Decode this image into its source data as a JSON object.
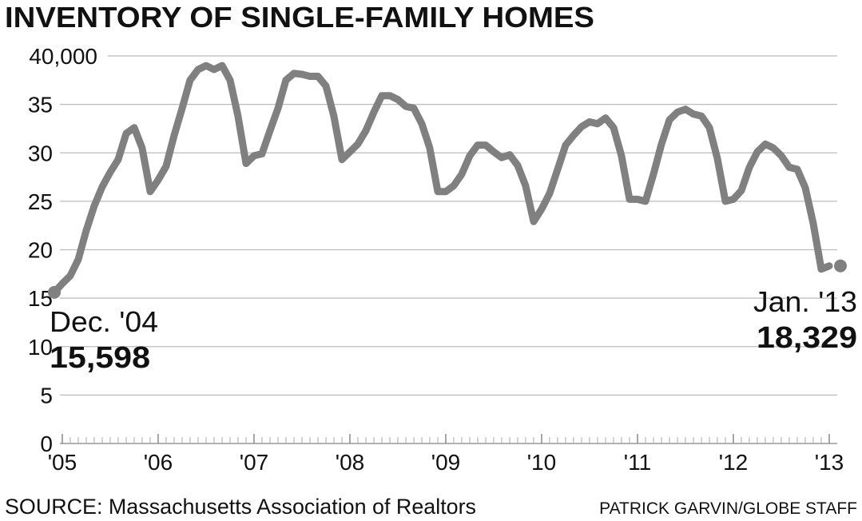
{
  "chart_data": {
    "type": "line",
    "title": "INVENTORY OF SINGLE-FAMILY HOMES",
    "source": "SOURCE: Massachusetts Association of Realtors",
    "credit": "PATRICK GARVIN/GLOBE STAFF",
    "annotations": [
      "Dec. '04",
      "Jan. '13"
    ],
    "x": [
      2004.917,
      2005.0,
      2005.083,
      2005.167,
      2005.25,
      2005.333,
      2005.417,
      2005.5,
      2005.583,
      2005.667,
      2005.75,
      2005.833,
      2005.917,
      2006.0,
      2006.083,
      2006.167,
      2006.25,
      2006.333,
      2006.417,
      2006.5,
      2006.583,
      2006.667,
      2006.75,
      2006.833,
      2006.917,
      2007.0,
      2007.083,
      2007.167,
      2007.25,
      2007.333,
      2007.417,
      2007.5,
      2007.583,
      2007.667,
      2007.75,
      2007.833,
      2007.917,
      2008.0,
      2008.083,
      2008.167,
      2008.25,
      2008.333,
      2008.417,
      2008.5,
      2008.583,
      2008.667,
      2008.75,
      2008.833,
      2008.917,
      2009.0,
      2009.083,
      2009.167,
      2009.25,
      2009.333,
      2009.417,
      2009.5,
      2009.583,
      2009.667,
      2009.75,
      2009.833,
      2009.917,
      2010.0,
      2010.083,
      2010.167,
      2010.25,
      2010.333,
      2010.417,
      2010.5,
      2010.583,
      2010.667,
      2010.75,
      2010.833,
      2010.917,
      2011.0,
      2011.083,
      2011.167,
      2011.25,
      2011.333,
      2011.417,
      2011.5,
      2011.583,
      2011.667,
      2011.75,
      2011.833,
      2011.917,
      2012.0,
      2012.083,
      2012.167,
      2012.25,
      2012.333,
      2012.417,
      2012.5,
      2012.583,
      2012.667,
      2012.75,
      2012.833,
      2012.917,
      2013.0
    ],
    "series": [
      {
        "name": "Inventory",
        "color": "#808080",
        "values": [
          15598,
          16500,
          17300,
          19000,
          22000,
          24500,
          26500,
          28000,
          29300,
          32000,
          32600,
          30500,
          26000,
          27200,
          28600,
          31800,
          34600,
          37500,
          38600,
          39000,
          38600,
          39000,
          37500,
          33800,
          28900,
          29700,
          29900,
          32300,
          34600,
          37500,
          38200,
          38100,
          37900,
          37900,
          36900,
          33800,
          29300,
          30100,
          30900,
          32300,
          34200,
          35900,
          35900,
          35500,
          34800,
          34600,
          33000,
          30500,
          26000,
          26000,
          26600,
          27800,
          29700,
          30800,
          30800,
          30100,
          29500,
          29800,
          28700,
          26600,
          22900,
          24200,
          25800,
          28300,
          30800,
          31800,
          32700,
          33200,
          33000,
          33600,
          32600,
          29700,
          25200,
          25200,
          25000,
          27800,
          30900,
          33400,
          34200,
          34500,
          34000,
          33800,
          32600,
          29400,
          25000,
          25200,
          26100,
          28500,
          30100,
          30900,
          30500,
          29700,
          28500,
          28300,
          26400,
          22700,
          18000,
          18329
        ],
        "value_labels": [
          "15,598",
          null,
          null,
          null,
          null,
          null,
          null,
          null,
          null,
          null,
          null,
          null,
          null,
          null,
          null,
          null,
          null,
          null,
          null,
          null,
          null,
          null,
          null,
          null,
          null,
          null,
          null,
          null,
          null,
          null,
          null,
          null,
          null,
          null,
          null,
          null,
          null,
          null,
          null,
          null,
          null,
          null,
          null,
          null,
          null,
          null,
          null,
          null,
          null,
          null,
          null,
          null,
          null,
          null,
          null,
          null,
          null,
          null,
          null,
          null,
          null,
          null,
          null,
          null,
          null,
          null,
          null,
          null,
          null,
          null,
          null,
          null,
          null,
          null,
          null,
          null,
          null,
          null,
          null,
          null,
          null,
          null,
          null,
          null,
          null,
          null,
          null,
          null,
          null,
          null,
          null,
          null,
          null,
          null,
          null,
          null,
          null,
          "18,329"
        ]
      }
    ],
    "xlim": [
      2004.917,
      2013.0
    ],
    "xticks": [
      {
        "value": 2005,
        "label": "'05"
      },
      {
        "value": 2006,
        "label": "'06"
      },
      {
        "value": 2007,
        "label": "'07"
      },
      {
        "value": 2008,
        "label": "'08"
      },
      {
        "value": 2009,
        "label": "'09"
      },
      {
        "value": 2010,
        "label": "'10"
      },
      {
        "value": 2011,
        "label": "'11"
      },
      {
        "value": 2012,
        "label": "'12"
      },
      {
        "value": 2013,
        "label": "'13"
      }
    ],
    "ylim": [
      0,
      40000
    ],
    "yticks": [
      0,
      {
        "value": 5000,
        "label": "5"
      },
      {
        "value": 10000,
        "label": "10"
      },
      {
        "value": 15000,
        "label": "15"
      },
      {
        "value": 20000,
        "label": "20"
      },
      {
        "value": 25000,
        "label": "25"
      },
      {
        "value": 30000,
        "label": "30"
      },
      {
        "value": 35000,
        "label": "35"
      },
      {
        "value": 40000,
        "label": "40,000"
      }
    ],
    "grid": true
  }
}
